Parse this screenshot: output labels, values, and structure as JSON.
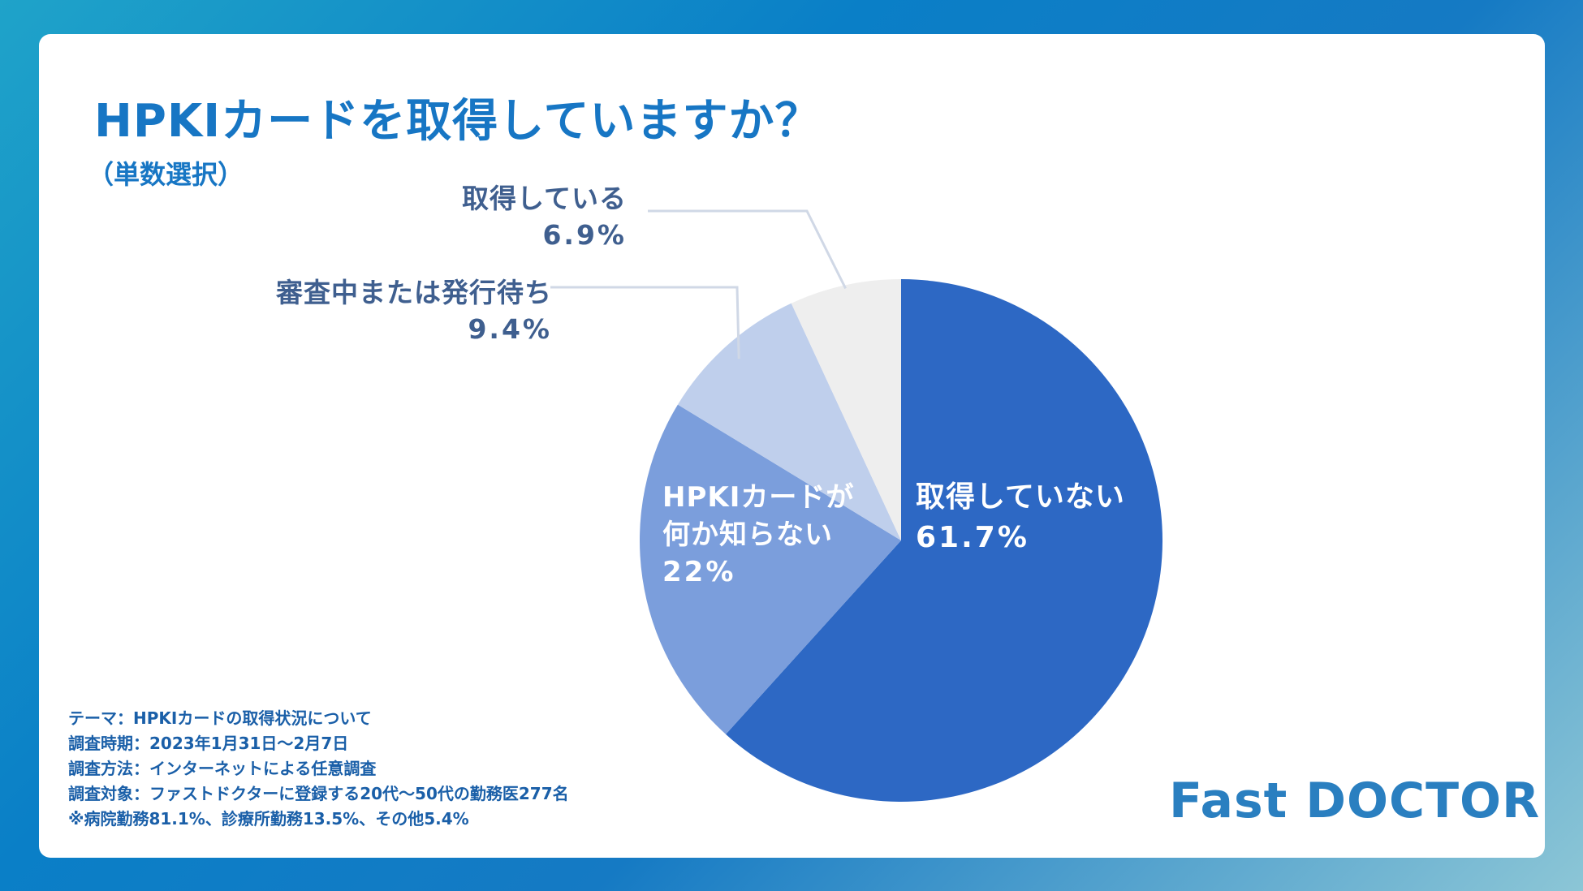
{
  "title": "HPKIカードを取得していますか？",
  "subtitle": "（単数選択）",
  "chart_data": {
    "type": "pie",
    "title": "HPKIカードを取得していますか？",
    "subtitle": "（単数選択）",
    "start": "12 o'clock, clockwise",
    "slices": [
      {
        "label": "取得していない",
        "value": 61.7,
        "value_label": "61.7%",
        "color": "#2d68c4"
      },
      {
        "label": "HPKIカードが何か知らない",
        "label_lines": [
          "HPKIカードが",
          "何か知らない"
        ],
        "value": 22,
        "value_label": "22%",
        "color": "#7b9edc"
      },
      {
        "label": "審査中または発行待ち",
        "value": 9.4,
        "value_label": "9.4%",
        "color": "#bfcfec"
      },
      {
        "label": "取得している",
        "value": 6.9,
        "value_label": "6.9%",
        "color": "#eeeeee"
      }
    ]
  },
  "notes": [
    "テーマ：HPKIカードの取得状況について",
    "調査時期：2023年1月31日〜2月7日",
    "調査方法：インターネットによる任意調査",
    "調査対象：ファストドクターに登録する20代〜50代の勤務医277名",
    "※病院勤務81.1%、診療所勤務13.5%、その他5.4%"
  ],
  "logo": "Fast DOCTOR",
  "colors": {
    "background_gradient": [
      "#1fa3c9",
      "#0a7fc7",
      "#8cc6d6"
    ],
    "title": "#1776c4",
    "outside_label": "#3f5f8f",
    "inside_label": "#ffffff",
    "leader_line": "#d0d8e6",
    "logo": "#2a7fc0"
  }
}
